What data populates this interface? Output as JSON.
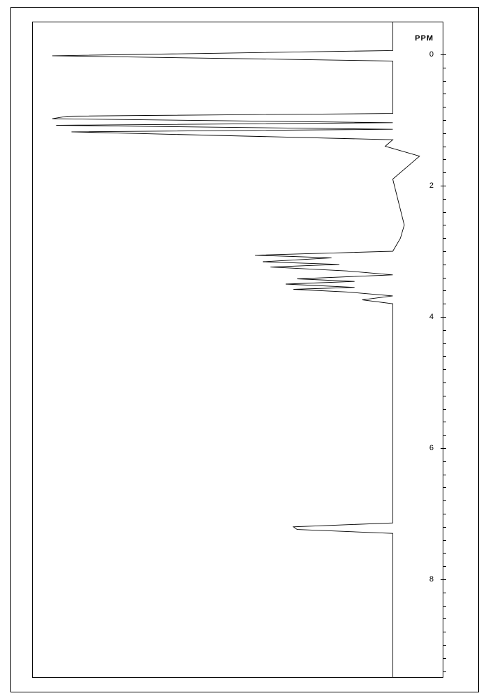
{
  "nmr_spectrum": {
    "type": "line",
    "orientation": "vertical",
    "background_color": "#ffffff",
    "line_color": "#000000",
    "line_width": 0.9,
    "frame_color": "#000000",
    "axis": {
      "label": "PPM",
      "label_fontsize": 11,
      "tick_fontsize": 11,
      "range_min": -0.5,
      "range_max": 9.5,
      "major_ticks": [
        0,
        2,
        4,
        6,
        8
      ],
      "minor_step": 0.2
    },
    "intensity_range": {
      "min": 0,
      "max": 1
    },
    "baseline": 0.9,
    "trace": [
      {
        "ppm": 9.5,
        "i": 0.9
      },
      {
        "ppm": 7.3,
        "i": 0.9
      },
      {
        "ppm": 7.24,
        "i": 0.65
      },
      {
        "ppm": 7.2,
        "i": 0.64
      },
      {
        "ppm": 7.14,
        "i": 0.9
      },
      {
        "ppm": 4.0,
        "i": 0.9
      },
      {
        "ppm": 3.8,
        "i": 0.9
      },
      {
        "ppm": 3.74,
        "i": 0.82
      },
      {
        "ppm": 3.68,
        "i": 0.9
      },
      {
        "ppm": 3.62,
        "i": 0.78
      },
      {
        "ppm": 3.58,
        "i": 0.64
      },
      {
        "ppm": 3.55,
        "i": 0.8
      },
      {
        "ppm": 3.5,
        "i": 0.62
      },
      {
        "ppm": 3.46,
        "i": 0.8
      },
      {
        "ppm": 3.42,
        "i": 0.65
      },
      {
        "ppm": 3.36,
        "i": 0.9
      },
      {
        "ppm": 3.3,
        "i": 0.78
      },
      {
        "ppm": 3.24,
        "i": 0.58
      },
      {
        "ppm": 3.2,
        "i": 0.76
      },
      {
        "ppm": 3.16,
        "i": 0.56
      },
      {
        "ppm": 3.1,
        "i": 0.74
      },
      {
        "ppm": 3.06,
        "i": 0.54
      },
      {
        "ppm": 3.0,
        "i": 0.9
      },
      {
        "ppm": 2.8,
        "i": 0.92
      },
      {
        "ppm": 2.6,
        "i": 0.93
      },
      {
        "ppm": 1.9,
        "i": 0.9
      },
      {
        "ppm": 1.7,
        "i": 0.94
      },
      {
        "ppm": 1.55,
        "i": 0.97
      },
      {
        "ppm": 1.4,
        "i": 0.88
      },
      {
        "ppm": 1.3,
        "i": 0.9
      },
      {
        "ppm": 1.18,
        "i": 0.06
      },
      {
        "ppm": 1.14,
        "i": 0.9
      },
      {
        "ppm": 1.08,
        "i": 0.02
      },
      {
        "ppm": 1.04,
        "i": 0.9
      },
      {
        "ppm": 0.98,
        "i": 0.01
      },
      {
        "ppm": 0.94,
        "i": 0.05
      },
      {
        "ppm": 0.9,
        "i": 0.9
      },
      {
        "ppm": 0.7,
        "i": 0.9
      },
      {
        "ppm": 0.4,
        "i": 0.9
      },
      {
        "ppm": 0.1,
        "i": 0.9
      },
      {
        "ppm": 0.02,
        "i": 0.01
      },
      {
        "ppm": -0.06,
        "i": 0.9
      },
      {
        "ppm": -0.5,
        "i": 0.9
      }
    ]
  }
}
